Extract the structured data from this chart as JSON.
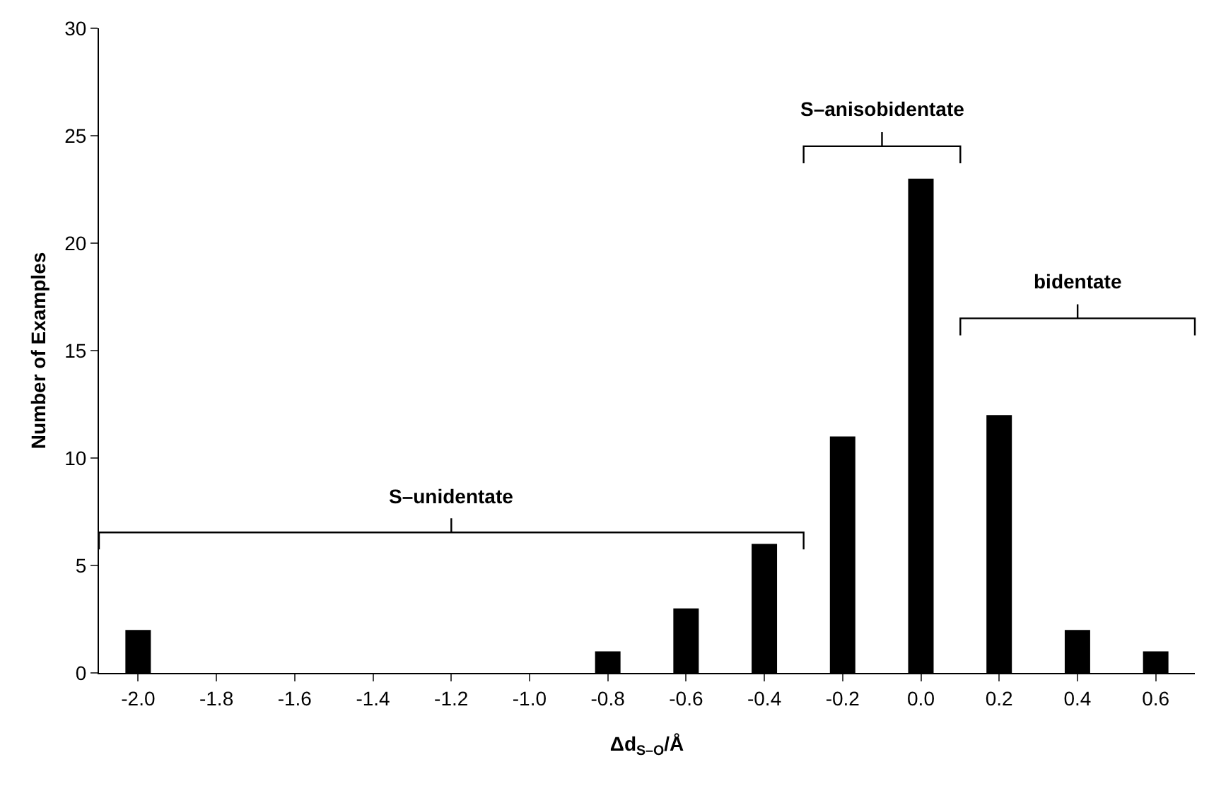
{
  "chart_data": {
    "type": "bar",
    "xlabel": "Δd$_{S–O}$/Å",
    "ylabel": "Number of Examples",
    "x": [
      -2.0,
      -1.8,
      -1.6,
      -1.4,
      -1.2,
      -1.0,
      -0.8,
      -0.6,
      -0.4,
      -0.2,
      0.0,
      0.2,
      0.4,
      0.6
    ],
    "values": [
      2,
      0,
      0,
      0,
      0,
      0,
      1,
      3,
      6,
      11,
      23,
      12,
      2,
      1
    ],
    "color": "#000000",
    "xlim": [
      -2.1,
      0.7
    ],
    "xticks": [
      {
        "value": -2.0,
        "label": "-2.0"
      },
      {
        "value": -1.8,
        "label": "-1.8"
      },
      {
        "value": -1.6,
        "label": "-1.6"
      },
      {
        "value": -1.4,
        "label": "-1.4"
      },
      {
        "value": -1.2,
        "label": "-1.2"
      },
      {
        "value": -1.0,
        "label": "-1.0"
      },
      {
        "value": -0.8,
        "label": "-0.8"
      },
      {
        "value": -0.6,
        "label": "-0.6"
      },
      {
        "value": -0.4,
        "label": "-0.4"
      },
      {
        "value": -0.2,
        "label": "-0.2"
      },
      {
        "value": 0,
        "label": "0.0"
      },
      {
        "value": 0.2,
        "label": "0.2"
      },
      {
        "value": 0.4,
        "label": "0.4"
      },
      {
        "value": 0.6,
        "label": "0.6"
      }
    ],
    "ylim": [
      0,
      30
    ],
    "yticks": [
      0,
      5,
      10,
      15,
      20,
      25,
      30
    ],
    "grid": false,
    "legend": false,
    "annotations": [
      "S–unidentate",
      "S–anisobidentate",
      "bidentate"
    ]
  }
}
